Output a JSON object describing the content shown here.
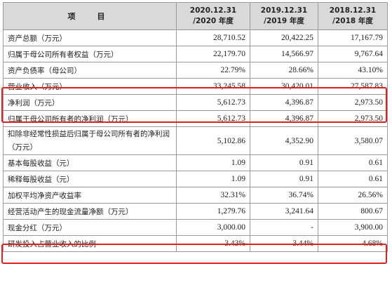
{
  "header": {
    "item": "项　目",
    "col1_line1": "2020.12.31",
    "col1_line2": "/2020 年度",
    "col2_line1": "2019.12.31",
    "col2_line2": "/2019 年度",
    "col3_line1": "2018.12.31",
    "col3_line2": "/2018 年度"
  },
  "rows": [
    {
      "label": "资产总额（万元）",
      "v1": "28,710.52",
      "v2": "20,422.25",
      "v3": "17,167.79"
    },
    {
      "label": "归属于母公司所有者权益（万元）",
      "v1": "22,179.70",
      "v2": "14,566.97",
      "v3": "9,767.64"
    },
    {
      "label": "资产负债率（母公司）",
      "v1": "22.79%",
      "v2": "28.66%",
      "v3": "43.10%"
    },
    {
      "label": "营业收入（万元）",
      "v1": "33,245.58",
      "v2": "30,420.01",
      "v3": "27,587.83"
    },
    {
      "label": "净利润（万元）",
      "v1": "5,612.73",
      "v2": "4,396.87",
      "v3": "2,973.50"
    },
    {
      "label": "归属于母公司所有者的净利润（万元）",
      "v1": "5,612.73",
      "v2": "4,396.87",
      "v3": "2,973.50"
    },
    {
      "label": "扣除非经常性损益后归属于母公司所有者的净利润（万元）",
      "v1": "5,102.86",
      "v2": "4,352.90",
      "v3": "3,580.07"
    },
    {
      "label": "基本每股收益（元）",
      "v1": "1.09",
      "v2": "0.91",
      "v3": "0.61"
    },
    {
      "label": "稀释每股收益（元）",
      "v1": "1.09",
      "v2": "0.91",
      "v3": "0.61"
    },
    {
      "label": "加权平均净资产收益率",
      "v1": "32.31%",
      "v2": "36.74%",
      "v3": "26.56%"
    },
    {
      "label": "经营活动产生的现金流量净额（万元）",
      "v1": "1,279.76",
      "v2": "3,241.64",
      "v3": "800.67"
    },
    {
      "label": "现金分红（万元）",
      "v1": "3,000.00",
      "v2": "-",
      "v3": "3,900.00"
    },
    {
      "label": "研发投入占营业收入的比例",
      "v1": "3.43%",
      "v2": "3.44%",
      "v3": "4.68%"
    }
  ],
  "highlight_color": "#e0201e",
  "header_bg": "#d9d9d9"
}
